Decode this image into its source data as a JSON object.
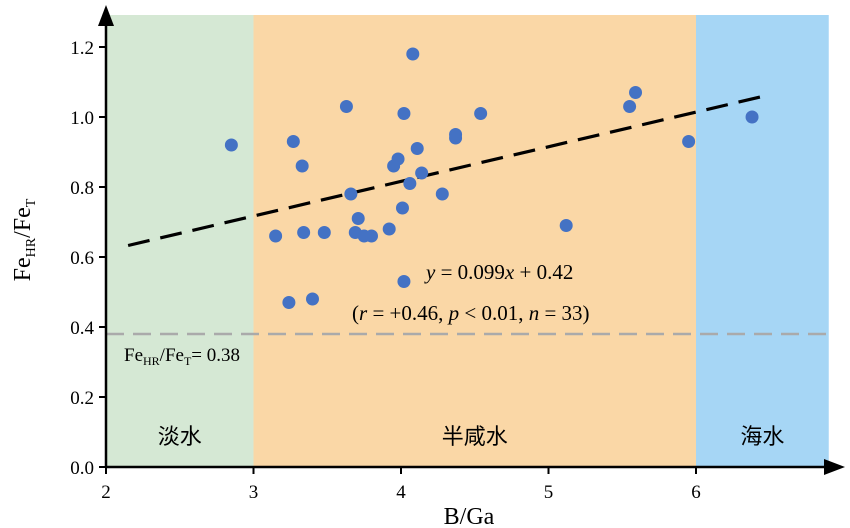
{
  "chart_data": {
    "type": "scatter",
    "xlabel": "B/Ga",
    "ylabel_main": "Fe",
    "ylabel_sub1": "HR",
    "ylabel_mid": "/Fe",
    "ylabel_sub2": "T",
    "xlim": [
      2,
      6.9
    ],
    "ylim": [
      0,
      1.3
    ],
    "xticks": [
      2,
      3,
      4,
      5,
      6
    ],
    "yticks": [
      0.0,
      0.2,
      0.4,
      0.6,
      0.8,
      1.0,
      1.2
    ],
    "xtick_labels": [
      "2",
      "3",
      "4",
      "5",
      "6"
    ],
    "ytick_labels": [
      "0.0",
      "0.2",
      "0.4",
      "0.6",
      "0.8",
      "1.0",
      "1.2"
    ],
    "zones": [
      {
        "label": "淡水",
        "x_from": 2,
        "x_to": 3,
        "color": "#d5e8d4"
      },
      {
        "label": "半咸水",
        "x_from": 3,
        "x_to": 6,
        "color": "#fad7a6"
      },
      {
        "label": "海水",
        "x_from": 6,
        "x_to": 6.9,
        "color": "#a6d6f5"
      }
    ],
    "threshold": {
      "value": 0.38,
      "label_main": "Fe",
      "label_sub1": "HR",
      "label_mid": "/Fe",
      "label_sub2": "T",
      "label_tail": "= 0.38",
      "color": "#aaaaaa"
    },
    "regression": {
      "slope": 0.099,
      "intercept": 0.42,
      "x_range": [
        2.15,
        6.5
      ],
      "eq_parts": [
        "y",
        " = 0.099",
        "x",
        " + 0.42"
      ],
      "stats_parts": [
        "(",
        "r",
        " = +0.46, ",
        "p",
        " < 0.01, ",
        "n",
        " = 33)"
      ]
    },
    "point_color": "#4472c4",
    "points": [
      {
        "x": 2.85,
        "y": 0.92
      },
      {
        "x": 3.15,
        "y": 0.66
      },
      {
        "x": 3.24,
        "y": 0.47
      },
      {
        "x": 3.27,
        "y": 0.93
      },
      {
        "x": 3.33,
        "y": 0.86
      },
      {
        "x": 3.34,
        "y": 0.67
      },
      {
        "x": 3.4,
        "y": 0.48
      },
      {
        "x": 3.48,
        "y": 0.67
      },
      {
        "x": 3.63,
        "y": 1.03
      },
      {
        "x": 3.66,
        "y": 0.78
      },
      {
        "x": 3.69,
        "y": 0.67
      },
      {
        "x": 3.71,
        "y": 0.71
      },
      {
        "x": 3.75,
        "y": 0.66
      },
      {
        "x": 3.8,
        "y": 0.66
      },
      {
        "x": 3.92,
        "y": 0.68
      },
      {
        "x": 3.95,
        "y": 0.86
      },
      {
        "x": 3.98,
        "y": 0.88
      },
      {
        "x": 4.01,
        "y": 0.74
      },
      {
        "x": 4.02,
        "y": 0.53
      },
      {
        "x": 4.02,
        "y": 1.01
      },
      {
        "x": 4.06,
        "y": 0.81
      },
      {
        "x": 4.08,
        "y": 1.18
      },
      {
        "x": 4.11,
        "y": 0.91
      },
      {
        "x": 4.14,
        "y": 0.84
      },
      {
        "x": 4.28,
        "y": 0.78
      },
      {
        "x": 4.37,
        "y": 0.94
      },
      {
        "x": 4.37,
        "y": 0.95
      },
      {
        "x": 4.54,
        "y": 1.01
      },
      {
        "x": 5.12,
        "y": 0.69
      },
      {
        "x": 5.55,
        "y": 1.03
      },
      {
        "x": 5.59,
        "y": 1.07
      },
      {
        "x": 5.95,
        "y": 0.93
      },
      {
        "x": 6.38,
        "y": 1.0
      }
    ]
  }
}
